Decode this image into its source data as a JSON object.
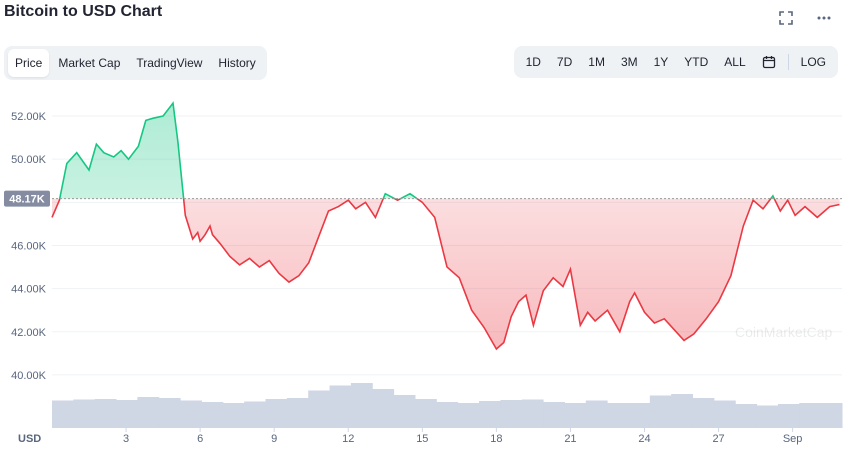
{
  "header": {
    "title": "Bitcoin to USD Chart",
    "fullscreen_icon": "fullscreen-icon",
    "more_icon": "more-dots-icon"
  },
  "tabs": [
    {
      "label": "Price",
      "active": true
    },
    {
      "label": "Market Cap",
      "active": false
    },
    {
      "label": "TradingView",
      "active": false
    },
    {
      "label": "History",
      "active": false
    }
  ],
  "ranges": [
    "1D",
    "7D",
    "1M",
    "3M",
    "1Y",
    "YTD",
    "ALL"
  ],
  "calendar_icon": "calendar-icon",
  "log_label": "LOG",
  "colors": {
    "up": "#16c784",
    "down": "#ea3943",
    "volume": "#cfd6e4",
    "grid": "#eff2f5",
    "axis_text": "#58667e"
  },
  "chart_data": {
    "type": "area",
    "x_unit_label": "USD",
    "x_ticks": [
      "3",
      "6",
      "9",
      "12",
      "15",
      "18",
      "21",
      "24",
      "27",
      "Sep"
    ],
    "y_ticks": [
      "40.00K",
      "42.00K",
      "44.00K",
      "46.00K",
      "48.00K",
      "50.00K",
      "52.00K"
    ],
    "ylim": [
      39300,
      53300
    ],
    "reference_value": 48170,
    "reference_label": "48.17K",
    "watermark": "CoinMarketCap",
    "series": [
      {
        "x": [
          0,
          0.3,
          0.6,
          1.0,
          1.5,
          1.8,
          2.1,
          2.5,
          2.8,
          3.1,
          3.5,
          3.8,
          4.1,
          4.5,
          4.9,
          5.1,
          5.4,
          5.7,
          5.9,
          6.0,
          6.2,
          6.4,
          6.5,
          6.8,
          7.2,
          7.6,
          8.0,
          8.4,
          8.8,
          9.2,
          9.6,
          10.0,
          10.4,
          10.8,
          11.2,
          11.6,
          12.0,
          12.3,
          12.7,
          13.1,
          13.5,
          14.0,
          14.5,
          15.0,
          15.5,
          16.0,
          16.5,
          17.0,
          17.5,
          18.0,
          18.3,
          18.6,
          18.9,
          19.2,
          19.5,
          19.9,
          20.3,
          20.7,
          21.0,
          21.4,
          21.7,
          22.0,
          22.5,
          23.0,
          23.4,
          23.6,
          24.0,
          24.4,
          24.8,
          25.2,
          25.6,
          26.0,
          26.5,
          27.0,
          27.5,
          28.0,
          28.4,
          28.8,
          29.2,
          29.5,
          29.8,
          30.1,
          30.5,
          31.0,
          31.5,
          31.9
        ],
        "values": [
          47300,
          48100,
          49800,
          50300,
          49500,
          50700,
          50300,
          50100,
          50400,
          50000,
          50600,
          51800,
          51900,
          52000,
          52600,
          50800,
          47400,
          46300,
          46600,
          46200,
          46500,
          46900,
          46500,
          46100,
          45500,
          45100,
          45400,
          45000,
          45300,
          44700,
          44300,
          44600,
          45200,
          46400,
          47600,
          47800,
          48100,
          47700,
          48000,
          47300,
          48400,
          48100,
          48400,
          48000,
          47300,
          45000,
          44500,
          43000,
          42200,
          41200,
          41500,
          42700,
          43400,
          43700,
          42300,
          43900,
          44500,
          44100,
          44900,
          42300,
          42900,
          42500,
          43000,
          42000,
          43400,
          43800,
          42900,
          42400,
          42600,
          42100,
          41600,
          41900,
          42600,
          43400,
          44600,
          46900,
          48100,
          47700,
          48300,
          47600,
          48100,
          47400,
          47800,
          47300,
          47800,
          47900
        ]
      }
    ],
    "volume_values": [
      0.55,
      0.57,
      0.58,
      0.56,
      0.62,
      0.6,
      0.55,
      0.52,
      0.5,
      0.53,
      0.58,
      0.6,
      0.75,
      0.85,
      0.9,
      0.78,
      0.66,
      0.58,
      0.52,
      0.5,
      0.54,
      0.56,
      0.57,
      0.52,
      0.5,
      0.55,
      0.5,
      0.5,
      0.65,
      0.68,
      0.6,
      0.55,
      0.48,
      0.45,
      0.48,
      0.5,
      0.5
    ]
  }
}
